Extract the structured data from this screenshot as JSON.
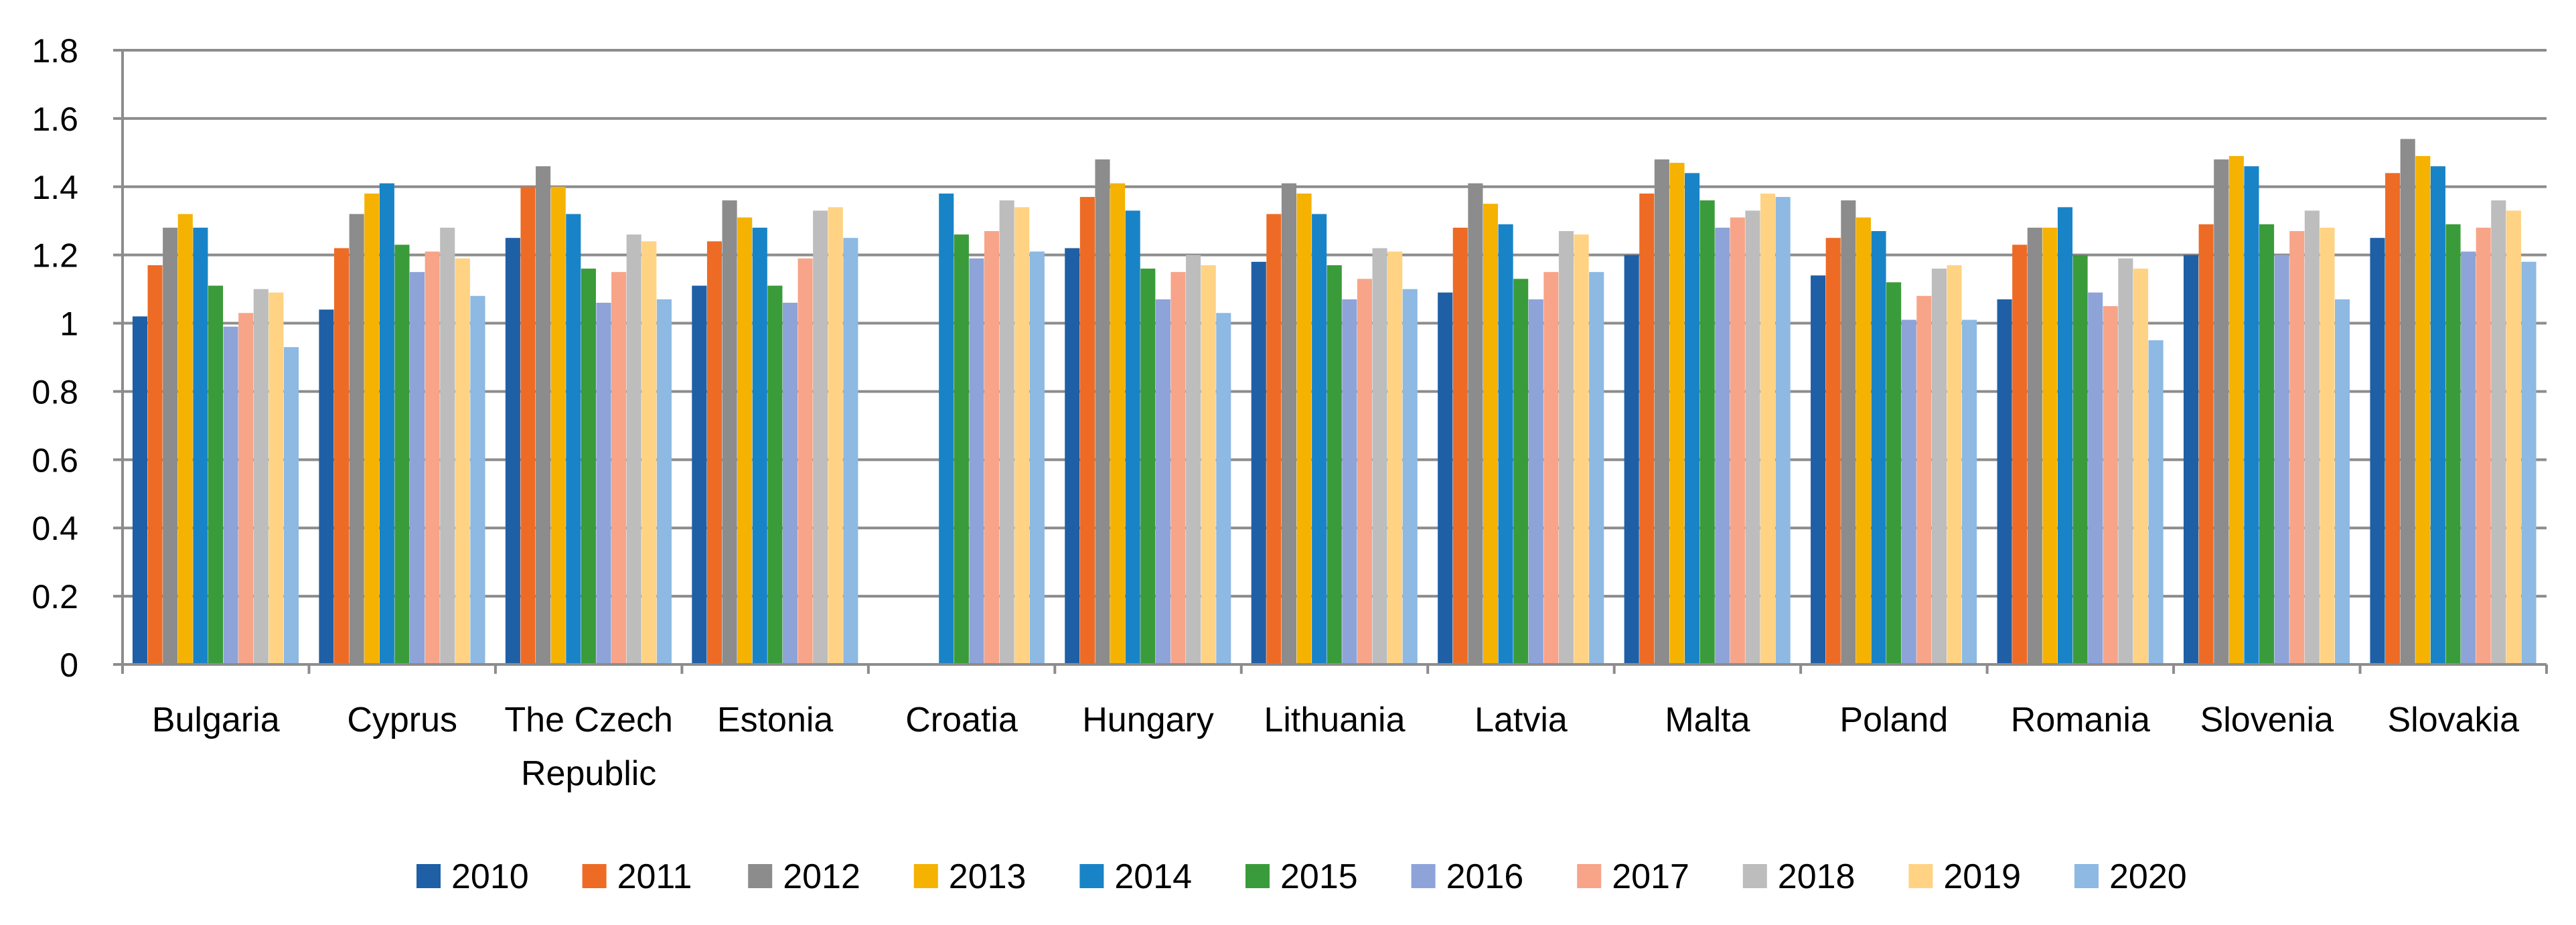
{
  "chart_data": {
    "type": "bar",
    "title": "",
    "xlabel": "",
    "ylabel": "",
    "ylim": [
      0,
      1.8
    ],
    "yticks": [
      0,
      0.2,
      0.4,
      0.6,
      0.8,
      1,
      1.2,
      1.4,
      1.6,
      1.8
    ],
    "ytick_labels": [
      "0",
      "0.2",
      "0.4",
      "0.6",
      "0.8",
      "1",
      "1.2",
      "1.4",
      "1.6",
      "1.8"
    ],
    "grid": true,
    "legend_position": "bottom",
    "categories": [
      {
        "lines": [
          "Bulgaria"
        ]
      },
      {
        "lines": [
          "Cyprus"
        ]
      },
      {
        "lines": [
          "The Czech",
          "Republic"
        ]
      },
      {
        "lines": [
          "Estonia"
        ]
      },
      {
        "lines": [
          "Croatia"
        ]
      },
      {
        "lines": [
          "Hungary"
        ]
      },
      {
        "lines": [
          "Lithuania"
        ]
      },
      {
        "lines": [
          "Latvia"
        ]
      },
      {
        "lines": [
          "Malta"
        ]
      },
      {
        "lines": [
          "Poland"
        ]
      },
      {
        "lines": [
          "Romania"
        ]
      },
      {
        "lines": [
          "Slovenia"
        ]
      },
      {
        "lines": [
          "Slovakia"
        ]
      }
    ],
    "series": [
      {
        "name": "2010",
        "color": "#1F5FA6",
        "values": [
          1.02,
          1.04,
          1.25,
          1.11,
          null,
          1.22,
          1.18,
          1.09,
          1.2,
          1.14,
          1.07,
          1.2,
          1.25
        ]
      },
      {
        "name": "2011",
        "color": "#ED6B25",
        "values": [
          1.17,
          1.22,
          1.4,
          1.24,
          null,
          1.37,
          1.32,
          1.28,
          1.38,
          1.25,
          1.23,
          1.29,
          1.44
        ]
      },
      {
        "name": "2012",
        "color": "#8C8C8C",
        "values": [
          1.28,
          1.32,
          1.46,
          1.36,
          null,
          1.48,
          1.41,
          1.41,
          1.48,
          1.36,
          1.28,
          1.48,
          1.54
        ]
      },
      {
        "name": "2013",
        "color": "#F5B201",
        "values": [
          1.32,
          1.38,
          1.4,
          1.31,
          null,
          1.41,
          1.38,
          1.35,
          1.47,
          1.31,
          1.28,
          1.49,
          1.49
        ]
      },
      {
        "name": "2014",
        "color": "#1884C7",
        "values": [
          1.28,
          1.41,
          1.32,
          1.28,
          1.38,
          1.33,
          1.32,
          1.29,
          1.44,
          1.27,
          1.34,
          1.46,
          1.46
        ]
      },
      {
        "name": "2015",
        "color": "#3A9B3A",
        "values": [
          1.11,
          1.23,
          1.16,
          1.11,
          1.26,
          1.16,
          1.17,
          1.13,
          1.36,
          1.12,
          1.2,
          1.29,
          1.29
        ]
      },
      {
        "name": "2016",
        "color": "#8EA3D8",
        "values": [
          0.99,
          1.15,
          1.06,
          1.06,
          1.19,
          1.07,
          1.07,
          1.07,
          1.28,
          1.01,
          1.09,
          1.2,
          1.21
        ]
      },
      {
        "name": "2017",
        "color": "#F7A489",
        "values": [
          1.03,
          1.21,
          1.15,
          1.19,
          1.27,
          1.15,
          1.13,
          1.15,
          1.31,
          1.08,
          1.05,
          1.27,
          1.28
        ]
      },
      {
        "name": "2018",
        "color": "#BDBDBD",
        "values": [
          1.1,
          1.28,
          1.26,
          1.33,
          1.36,
          1.2,
          1.22,
          1.27,
          1.33,
          1.16,
          1.19,
          1.33,
          1.36
        ]
      },
      {
        "name": "2019",
        "color": "#FFD383",
        "values": [
          1.09,
          1.19,
          1.24,
          1.34,
          1.34,
          1.17,
          1.21,
          1.26,
          1.38,
          1.17,
          1.16,
          1.28,
          1.33
        ]
      },
      {
        "name": "2020",
        "color": "#8DB9E3",
        "values": [
          0.93,
          1.08,
          1.07,
          1.25,
          1.21,
          1.03,
          1.1,
          1.15,
          1.37,
          1.01,
          0.95,
          1.07,
          1.18
        ]
      }
    ]
  },
  "colors": {
    "gridline": "#8C8C8C",
    "axis": "#8C8C8C",
    "text": "#000000",
    "background": "#FFFFFF"
  }
}
